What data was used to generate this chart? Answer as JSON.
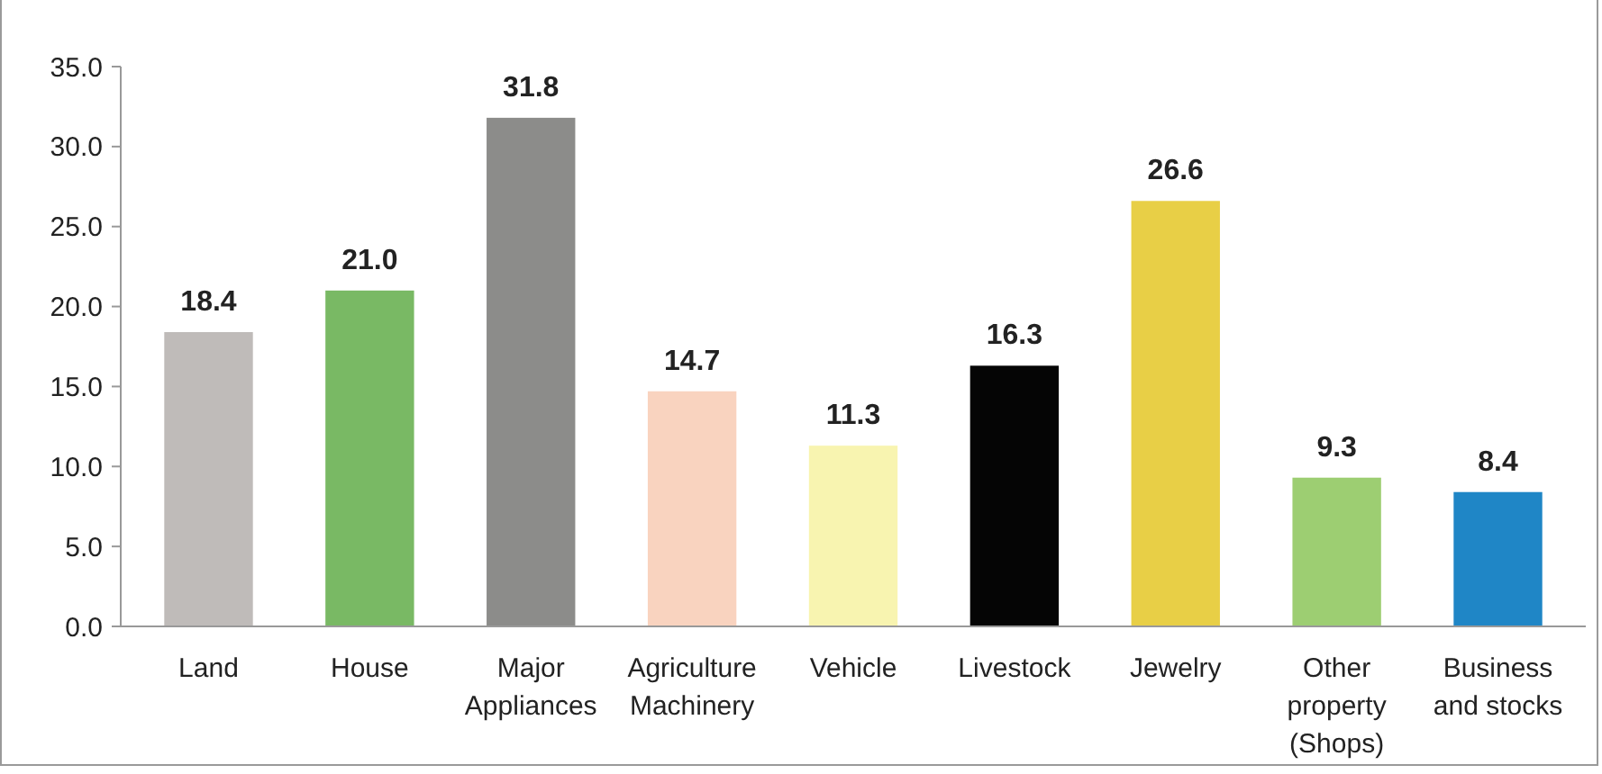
{
  "chart_data": {
    "type": "bar",
    "categories": [
      "Land",
      "House",
      "Major\nAppliances",
      "Agriculture\nMachinery",
      "Vehicle",
      "Livestock",
      "Jewelry",
      "Other\nproperty\n(Shops)",
      "Business\nand stocks"
    ],
    "values": [
      18.4,
      21.0,
      31.8,
      14.7,
      11.3,
      16.3,
      26.6,
      9.3,
      8.4
    ],
    "colors": [
      "#bfbbb9",
      "#79b964",
      "#8c8c8a",
      "#f9d3bf",
      "#f8f4b0",
      "#050505",
      "#e8cf46",
      "#9dce72",
      "#1f86c6"
    ],
    "value_labels": [
      "18.4",
      "21.0",
      "31.8",
      "14.7",
      "11.3",
      "16.3",
      "26.6",
      "9.3",
      "8.4"
    ],
    "ylim": [
      0,
      35
    ],
    "yticks": [
      {
        "value": 0,
        "label": "0.0"
      },
      {
        "value": 5,
        "label": "5.0"
      },
      {
        "value": 10,
        "label": "10.0"
      },
      {
        "value": 15,
        "label": "15.0"
      },
      {
        "value": 20,
        "label": "20.0"
      },
      {
        "value": 25,
        "label": "25.0"
      },
      {
        "value": 30,
        "label": "30.0"
      },
      {
        "value": 35,
        "label": "35.0"
      }
    ],
    "grid": false
  }
}
